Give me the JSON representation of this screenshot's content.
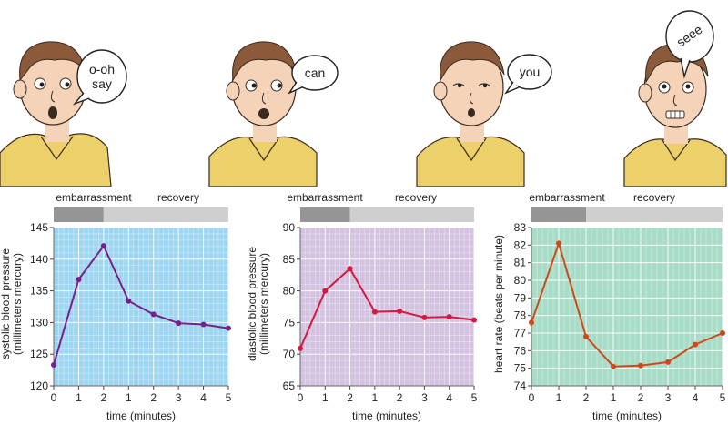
{
  "comic": {
    "panels": [
      {
        "speech": [
          "o-oh",
          "say"
        ]
      },
      {
        "speech": [
          "can"
        ]
      },
      {
        "speech": [
          "you"
        ]
      },
      {
        "speech": [
          "seee"
        ]
      }
    ]
  },
  "colors": {
    "skin": "#f5d3b8",
    "hair": "#8a5a3a",
    "shirt": "#ecd06a",
    "outline": "#3a2a20",
    "embarrassment_bar": "#959595",
    "recovery_bar": "#cfcfcf"
  },
  "chart_data": [
    {
      "type": "line",
      "phase_labels": {
        "embarrassment": "embarrassment",
        "recovery": "recovery"
      },
      "x_ticks": [
        "0",
        "1",
        "2",
        "1",
        "2",
        "3",
        "4",
        "5"
      ],
      "xlabel": "time (minutes)",
      "ylabel": [
        "systolic blood pressure",
        "(millimeters mercury)"
      ],
      "ylim": [
        120,
        145
      ],
      "y_ticks": [
        120,
        125,
        130,
        135,
        140,
        145
      ],
      "values": [
        123.3,
        136.8,
        142.1,
        133.4,
        131.3,
        129.9,
        129.7,
        129.1
      ],
      "background": "#9ed6f1",
      "line_color": "#7a1f8a",
      "grid": true
    },
    {
      "type": "line",
      "phase_labels": {
        "embarrassment": "embarrassment",
        "recovery": "recovery"
      },
      "x_ticks": [
        "0",
        "1",
        "2",
        "1",
        "2",
        "3",
        "4",
        "5"
      ],
      "xlabel": "time (minutes)",
      "ylabel": [
        "diastolic blood pressure",
        "(millimeters mercury)"
      ],
      "ylim": [
        65,
        90
      ],
      "y_ticks": [
        65,
        70,
        75,
        80,
        85,
        90
      ],
      "values": [
        70.9,
        80.0,
        83.5,
        76.7,
        76.8,
        75.8,
        75.9,
        75.4
      ],
      "background": "#d3c2e0",
      "line_color": "#d6173f",
      "grid": true
    },
    {
      "type": "line",
      "phase_labels": {
        "embarrassment": "embarrassment",
        "recovery": "recovery"
      },
      "x_ticks": [
        "0",
        "1",
        "2",
        "1",
        "2",
        "3",
        "4",
        "5"
      ],
      "xlabel": "time (minutes)",
      "ylabel": [
        "heart rate (beats per minute)"
      ],
      "ylim": [
        74,
        83
      ],
      "y_ticks": [
        74,
        75,
        76,
        77,
        78,
        79,
        80,
        81,
        82,
        83
      ],
      "values": [
        77.6,
        82.1,
        76.8,
        75.1,
        75.15,
        75.35,
        76.35,
        77.0
      ],
      "background": "#a8dcc7",
      "line_color": "#cc4a1a",
      "grid": true
    }
  ]
}
